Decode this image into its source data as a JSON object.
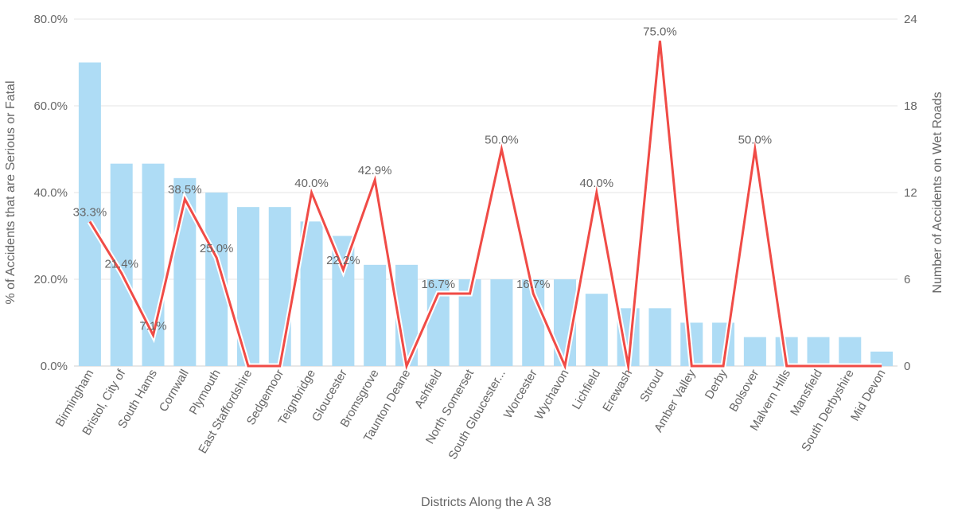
{
  "chart_data": {
    "type": "bar",
    "title": "",
    "xlabel": "Districts Along the A 38",
    "ylabel": "% of Accidents that are Serious or Fatal",
    "y2label": "Number of Accidents on Wet Roads",
    "categories": [
      "Birmingham",
      "Bristol, City of",
      "South Hams",
      "Cornwall",
      "Plymouth",
      "East Staffordshire",
      "Sedgemoor",
      "Teignbridge",
      "Gloucester",
      "Bromsgrove",
      "Taunton Deane",
      "Ashfield",
      "North Somerset",
      "South Gloucester...",
      "Worcester",
      "Wychavon",
      "Lichfield",
      "Erewash",
      "Stroud",
      "Amber Valley",
      "Derby",
      "Bolsover",
      "Malvern Hills",
      "Mansfield",
      "South Derbyshire",
      "Mid Devon"
    ],
    "ylim": [
      0,
      80
    ],
    "yticks": [
      "0.0%",
      "20.0%",
      "40.0%",
      "60.0%",
      "80.0%"
    ],
    "y2lim": [
      0,
      24
    ],
    "y2ticks": [
      "0",
      "6",
      "12",
      "18",
      "24"
    ],
    "grid": true,
    "series": [
      {
        "type": "bar",
        "axis": "right",
        "color": "#aedcf5",
        "values": [
          21,
          14,
          14,
          13,
          12,
          11,
          11,
          10,
          9,
          7,
          7,
          6,
          6,
          6,
          6,
          6,
          5,
          4,
          4,
          3,
          3,
          2,
          2,
          2,
          2,
          1
        ]
      },
      {
        "type": "line",
        "axis": "left",
        "color": "#f04b46",
        "values": [
          33.3,
          21.4,
          7.1,
          38.5,
          25.0,
          0,
          0,
          40.0,
          22.2,
          42.9,
          0,
          16.7,
          16.7,
          50.0,
          16.7,
          0,
          40.0,
          0,
          75.0,
          0,
          0,
          50.0,
          0,
          0,
          0,
          0
        ],
        "labels": [
          "33.3%",
          "21.4%",
          "7.1%",
          "38.5%",
          "25.0%",
          "",
          "",
          "40.0%",
          "22.2%",
          "42.9%",
          "",
          "16.7%",
          "",
          "50.0%",
          "16.7%",
          "",
          "40.0%",
          "",
          "75.0%",
          "",
          "",
          "50.0%",
          "",
          "",
          "",
          ""
        ]
      }
    ]
  }
}
